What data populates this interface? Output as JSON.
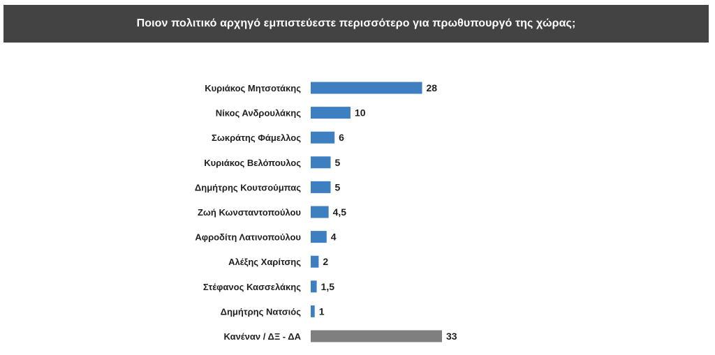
{
  "title": "Ποιον πολιτικό αρχηγό εμπιστεύεστε περισσότερο για πρωθυπουργό της χώρας;",
  "colors": {
    "banner": "#434343",
    "bar": "#3d7fc1",
    "bar_other": "#7f7f7f"
  },
  "chart_data": {
    "type": "bar",
    "orientation": "horizontal",
    "title": "Ποιον πολιτικό αρχηγό εμπιστεύεστε περισσότερο για πρωθυπουργό της χώρας;",
    "categories": [
      "Κυριάκος Μητσοτάκης",
      "Νίκος Ανδρουλάκης",
      "Σωκράτης Φάμελλος",
      "Κυριάκος Βελόπουλος",
      "Δημήτρης Κουτσούμπας",
      "Ζωή Κωνσταντοπούλου",
      "Αφροδίτη Λατινοπούλου",
      "Αλέξης Χαρίτσης",
      "Στέφανος Κασσελάκης",
      "Δημήτρης Νατσιός",
      "Κανέναν / ΔΞ - ΔΑ"
    ],
    "values": [
      28,
      10,
      6,
      5,
      5,
      4.5,
      4,
      2,
      1.5,
      1,
      33
    ],
    "value_labels": [
      "28",
      "10",
      "6",
      "5",
      "5",
      "4,5",
      "4",
      "2",
      "1,5",
      "1",
      "33"
    ],
    "highlight_category": "Κανέναν / ΔΞ - ΔΑ",
    "xlim": [
      0,
      33
    ],
    "grid": false,
    "legend": "none"
  }
}
